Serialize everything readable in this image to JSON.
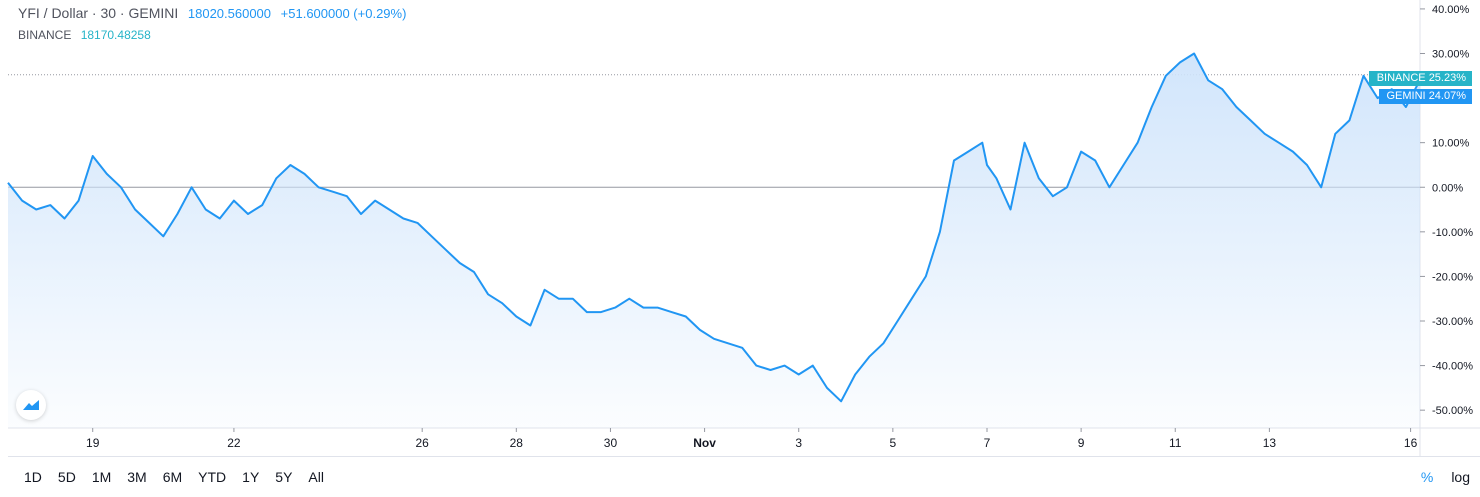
{
  "legend": {
    "symbol": "YFI / Dollar · 30 · GEMINI",
    "price": "18020.560000",
    "change": "+51.600000 (+0.29%)",
    "compare_label": "BINANCE",
    "compare_value": "18170.48258"
  },
  "tags": {
    "binance": {
      "name": "BINANCE",
      "value": "25.23%"
    },
    "gemini": {
      "name": "GEMINI",
      "value": "24.07%"
    }
  },
  "time_ranges": [
    "1D",
    "5D",
    "1M",
    "3M",
    "6M",
    "YTD",
    "1Y",
    "5Y",
    "All"
  ],
  "scale_toggle": {
    "percent": "%",
    "log": "log"
  },
  "colors": {
    "line": "#2196f3",
    "compare": "#26b4c8",
    "area_top": "#cfe4fb"
  },
  "chart_data": {
    "type": "area",
    "yaxis_unit": "%",
    "ylim": [
      -54,
      42
    ],
    "y_ticks": [
      "40.00%",
      "30.00%",
      "20.00%",
      "10.00%",
      "0.00%",
      "-10.00%",
      "-20.00%",
      "-30.00%",
      "-40.00%",
      "-50.00%"
    ],
    "y_tick_values": [
      40,
      30,
      20,
      10,
      0,
      -10,
      -20,
      -30,
      -40,
      -50
    ],
    "x_ticks": [
      "19",
      "22",
      "26",
      "28",
      "30",
      "Nov",
      "3",
      "5",
      "7",
      "9",
      "11",
      "13",
      "16"
    ],
    "x_tick_values": [
      19,
      22,
      26,
      28,
      30,
      32,
      34,
      36,
      38,
      40,
      42,
      44,
      47
    ],
    "baseline": 0,
    "reference_line": 25.23,
    "xlim": [
      17.2,
      47.2
    ],
    "series": [
      {
        "name": "GEMINI",
        "x": [
          17.2,
          17.5,
          17.8,
          18.1,
          18.4,
          18.7,
          19.0,
          19.3,
          19.6,
          19.9,
          20.2,
          20.5,
          20.8,
          21.1,
          21.4,
          21.7,
          22.0,
          22.3,
          22.6,
          22.9,
          23.2,
          23.5,
          23.8,
          24.1,
          24.4,
          24.7,
          25.0,
          25.3,
          25.6,
          25.9,
          26.2,
          26.5,
          26.8,
          27.1,
          27.4,
          27.7,
          28.0,
          28.3,
          28.6,
          28.9,
          29.2,
          29.5,
          29.8,
          30.1,
          30.4,
          30.7,
          31.0,
          31.3,
          31.6,
          31.9,
          32.2,
          32.5,
          32.8,
          33.1,
          33.4,
          33.7,
          34.0,
          34.3,
          34.6,
          34.9,
          35.2,
          35.5,
          35.8,
          36.1,
          36.4,
          36.7,
          37.0,
          37.3,
          37.6,
          37.9,
          38.0,
          38.2,
          38.5,
          38.8,
          39.1,
          39.4,
          39.7,
          40.0,
          40.3,
          40.6,
          40.9,
          41.2,
          41.5,
          41.8,
          42.1,
          42.4,
          42.7,
          43.0,
          43.3,
          43.6,
          43.9,
          44.2,
          44.5,
          44.8,
          45.1,
          45.4,
          45.7,
          46.0,
          46.3,
          46.6,
          46.9,
          47.2
        ],
        "y": [
          1,
          -3,
          -5,
          -4,
          -7,
          -3,
          7,
          3,
          0,
          -5,
          -8,
          -11,
          -6,
          0,
          -5,
          -7,
          -3,
          -6,
          -4,
          2,
          5,
          3,
          0,
          -1,
          -2,
          -6,
          -3,
          -5,
          -7,
          -8,
          -11,
          -14,
          -17,
          -19,
          -24,
          -26,
          -29,
          -31,
          -23,
          -25,
          -25,
          -28,
          -28,
          -27,
          -25,
          -27,
          -27,
          -28,
          -29,
          -32,
          -34,
          -35,
          -36,
          -40,
          -41,
          -40,
          -42,
          -40,
          -45,
          -48,
          -42,
          -38,
          -35,
          -30,
          -25,
          -20,
          -10,
          6,
          8,
          10,
          5,
          2,
          -5,
          10,
          2,
          -2,
          0,
          8,
          6,
          0,
          5,
          10,
          18,
          25,
          28,
          30,
          24,
          22,
          18,
          15,
          12,
          10,
          8,
          5,
          0,
          12,
          15,
          25,
          20,
          22,
          18,
          24.07
        ]
      }
    ]
  }
}
